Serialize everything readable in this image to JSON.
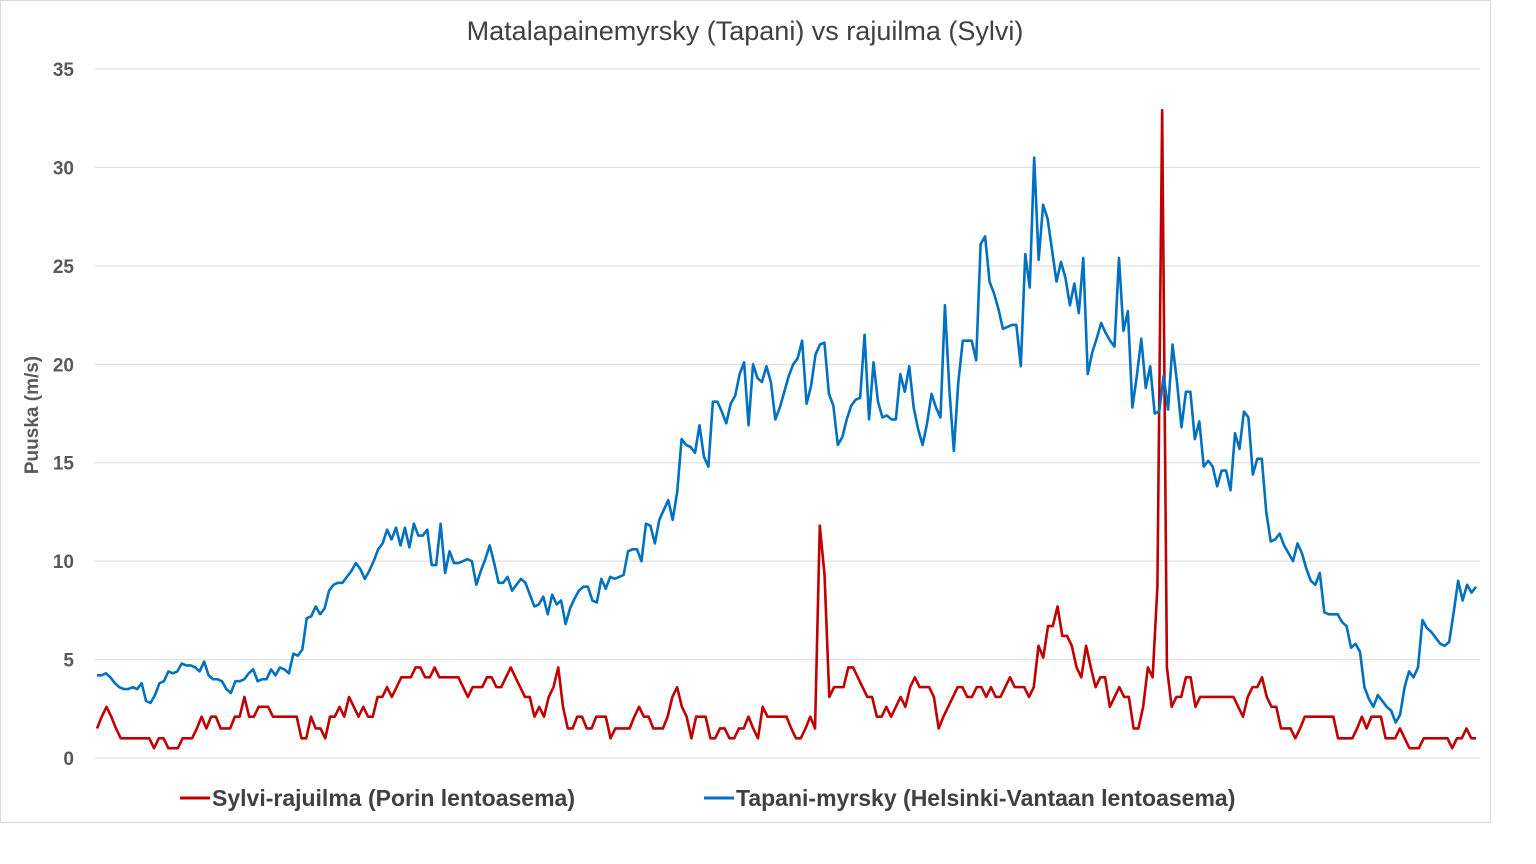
{
  "chart_data": {
    "type": "line",
    "title": "Matalapainemyrsky (Tapani) vs rajuilma (Sylvi)",
    "xlabel": "",
    "ylabel": "Puuska (m/s)",
    "ylim": [
      0,
      35
    ],
    "yticks": [
      0,
      5,
      10,
      15,
      20,
      25,
      30,
      35
    ],
    "grid": true,
    "legend_position": "bottom",
    "series": [
      {
        "name": "Sylvi-rajuilma (Porin lentoasema)",
        "color": "#C00000",
        "values": [
          1.5,
          2.1,
          2.6,
          2.1,
          1.5,
          1.0,
          1.0,
          1.0,
          1.0,
          1.0,
          1.0,
          1.0,
          0.5,
          1.0,
          1.0,
          0.5,
          0.5,
          0.5,
          1.0,
          1.0,
          1.0,
          1.5,
          2.1,
          1.5,
          2.1,
          2.1,
          1.5,
          1.5,
          1.5,
          2.1,
          2.1,
          3.1,
          2.1,
          2.1,
          2.6,
          2.6,
          2.6,
          2.1,
          2.1,
          2.1,
          2.1,
          2.1,
          2.1,
          1.0,
          1.0,
          2.1,
          1.5,
          1.5,
          1.0,
          2.1,
          2.1,
          2.6,
          2.1,
          3.1,
          2.6,
          2.1,
          2.6,
          2.1,
          2.1,
          3.1,
          3.1,
          3.6,
          3.1,
          3.6,
          4.1,
          4.1,
          4.1,
          4.6,
          4.6,
          4.1,
          4.1,
          4.6,
          4.1,
          4.1,
          4.1,
          4.1,
          4.1,
          3.6,
          3.1,
          3.6,
          3.6,
          3.6,
          4.1,
          4.1,
          3.6,
          3.6,
          4.1,
          4.6,
          4.1,
          3.6,
          3.1,
          3.1,
          2.1,
          2.6,
          2.1,
          3.1,
          3.6,
          4.6,
          2.6,
          1.5,
          1.5,
          2.1,
          2.1,
          1.5,
          1.5,
          2.1,
          2.1,
          2.1,
          1.0,
          1.5,
          1.5,
          1.5,
          1.5,
          2.1,
          2.6,
          2.1,
          2.1,
          1.5,
          1.5,
          1.5,
          2.1,
          3.1,
          3.6,
          2.6,
          2.1,
          1.0,
          2.1,
          2.1,
          2.1,
          1.0,
          1.0,
          1.5,
          1.5,
          1.0,
          1.0,
          1.5,
          1.5,
          2.1,
          1.5,
          1.0,
          2.6,
          2.1,
          2.1,
          2.1,
          2.1,
          2.1,
          1.5,
          1.0,
          1.0,
          1.5,
          2.1,
          1.5,
          11.8,
          9.3,
          3.1,
          3.6,
          3.6,
          3.6,
          4.6,
          4.6,
          4.1,
          3.6,
          3.1,
          3.1,
          2.1,
          2.1,
          2.6,
          2.1,
          2.6,
          3.1,
          2.6,
          3.6,
          4.1,
          3.6,
          3.6,
          3.6,
          3.1,
          1.5,
          2.1,
          2.6,
          3.1,
          3.6,
          3.6,
          3.1,
          3.1,
          3.6,
          3.6,
          3.1,
          3.6,
          3.1,
          3.1,
          3.6,
          4.1,
          3.6,
          3.6,
          3.6,
          3.1,
          3.6,
          5.7,
          5.1,
          6.7,
          6.7,
          7.7,
          6.2,
          6.2,
          5.7,
          4.6,
          4.1,
          5.7,
          4.6,
          3.6,
          4.1,
          4.1,
          2.6,
          3.1,
          3.6,
          3.1,
          3.1,
          1.5,
          1.5,
          2.6,
          4.6,
          4.1,
          8.7,
          32.9,
          4.6,
          2.6,
          3.1,
          3.1,
          4.1,
          4.1,
          2.6,
          3.1,
          3.1,
          3.1,
          3.1,
          3.1,
          3.1,
          3.1,
          3.1,
          2.6,
          2.1,
          3.1,
          3.6,
          3.6,
          4.1,
          3.1,
          2.6,
          2.6,
          1.5,
          1.5,
          1.5,
          1.0,
          1.5,
          2.1,
          2.1,
          2.1,
          2.1,
          2.1,
          2.1,
          2.1,
          1.0,
          1.0,
          1.0,
          1.0,
          1.5,
          2.1,
          1.5,
          2.1,
          2.1,
          2.1,
          1.0,
          1.0,
          1.0,
          1.5,
          1.0,
          0.5,
          0.5,
          0.5,
          1.0,
          1.0,
          1.0,
          1.0,
          1.0,
          1.0,
          0.5,
          1.0,
          1.0,
          1.5,
          1.0,
          1.0
        ]
      },
      {
        "name": "Tapani-myrsky (Helsinki-Vantaan lentoasema)",
        "color": "#0070C0",
        "values": [
          4.2,
          4.2,
          4.3,
          4.1,
          3.8,
          3.6,
          3.5,
          3.5,
          3.6,
          3.5,
          3.8,
          2.9,
          2.8,
          3.2,
          3.8,
          3.9,
          4.4,
          4.3,
          4.4,
          4.8,
          4.7,
          4.7,
          4.6,
          4.4,
          4.9,
          4.2,
          4.0,
          4.0,
          3.9,
          3.5,
          3.3,
          3.9,
          3.9,
          4.0,
          4.3,
          4.5,
          3.9,
          4.0,
          4.0,
          4.5,
          4.2,
          4.6,
          4.5,
          4.3,
          5.3,
          5.2,
          5.5,
          7.1,
          7.2,
          7.7,
          7.3,
          7.6,
          8.5,
          8.8,
          8.9,
          8.9,
          9.2,
          9.5,
          9.9,
          9.6,
          9.1,
          9.5,
          10.0,
          10.6,
          10.9,
          11.6,
          11.1,
          11.7,
          10.8,
          11.7,
          10.7,
          11.9,
          11.3,
          11.3,
          11.6,
          9.8,
          9.8,
          11.9,
          9.4,
          10.5,
          9.9,
          9.9,
          10.0,
          10.1,
          10.0,
          8.8,
          9.5,
          10.1,
          10.8,
          9.9,
          8.9,
          8.9,
          9.2,
          8.5,
          8.8,
          9.1,
          8.9,
          8.3,
          7.7,
          7.8,
          8.2,
          7.3,
          8.3,
          7.8,
          8.0,
          6.8,
          7.6,
          8.1,
          8.5,
          8.7,
          8.7,
          8.0,
          7.9,
          9.1,
          8.6,
          9.2,
          9.1,
          9.2,
          9.3,
          10.5,
          10.6,
          10.6,
          10.0,
          11.9,
          11.8,
          10.9,
          12.1,
          12.6,
          13.1,
          12.1,
          13.5,
          16.2,
          15.9,
          15.8,
          15.5,
          16.9,
          15.3,
          14.8,
          18.1,
          18.1,
          17.6,
          17.0,
          18.0,
          18.4,
          19.5,
          20.1,
          16.9,
          20.0,
          19.3,
          19.1,
          19.9,
          19.1,
          17.2,
          17.8,
          18.6,
          19.4,
          20.0,
          20.3,
          21.2,
          18.0,
          18.9,
          20.5,
          21.0,
          21.1,
          18.5,
          17.9,
          15.9,
          16.3,
          17.2,
          17.9,
          18.2,
          18.3,
          21.5,
          17.2,
          20.1,
          18.1,
          17.3,
          17.4,
          17.2,
          17.2,
          19.5,
          18.6,
          19.9,
          17.8,
          16.7,
          15.9,
          17.0,
          18.5,
          17.8,
          17.3,
          23.0,
          18.7,
          15.6,
          19.1,
          21.2,
          21.2,
          21.2,
          20.2,
          26.1,
          26.5,
          24.2,
          23.6,
          22.8,
          21.8,
          21.9,
          22.0,
          22.0,
          19.9,
          25.6,
          23.9,
          30.5,
          25.3,
          28.1,
          27.4,
          25.8,
          24.2,
          25.2,
          24.4,
          23.0,
          24.1,
          22.6,
          25.4,
          19.5,
          20.6,
          21.3,
          22.1,
          21.6,
          21.2,
          20.9,
          25.4,
          21.7,
          22.7,
          17.8,
          19.4,
          21.3,
          18.8,
          19.9,
          17.5,
          17.6,
          19.4,
          17.7,
          21.0,
          19.1,
          16.8,
          18.6,
          18.6,
          16.2,
          17.1,
          14.8,
          15.1,
          14.8,
          13.8,
          14.6,
          14.6,
          13.6,
          16.5,
          15.7,
          17.6,
          17.3,
          14.4,
          15.2,
          15.2,
          12.5,
          11.0,
          11.1,
          11.4,
          10.8,
          10.4,
          10.0,
          10.9,
          10.4,
          9.6,
          9.0,
          8.8,
          9.4,
          7.4,
          7.3,
          7.3,
          7.3,
          6.9,
          6.7,
          5.6,
          5.8,
          5.4,
          3.6,
          3.0,
          2.6,
          3.2,
          2.9,
          2.6,
          2.4,
          1.8,
          2.2,
          3.6,
          4.4,
          4.1,
          4.6,
          7.0,
          6.6,
          6.4,
          6.1,
          5.8,
          5.7,
          5.9,
          7.4,
          9.0,
          8.0,
          8.8,
          8.4,
          8.7
        ]
      }
    ]
  }
}
